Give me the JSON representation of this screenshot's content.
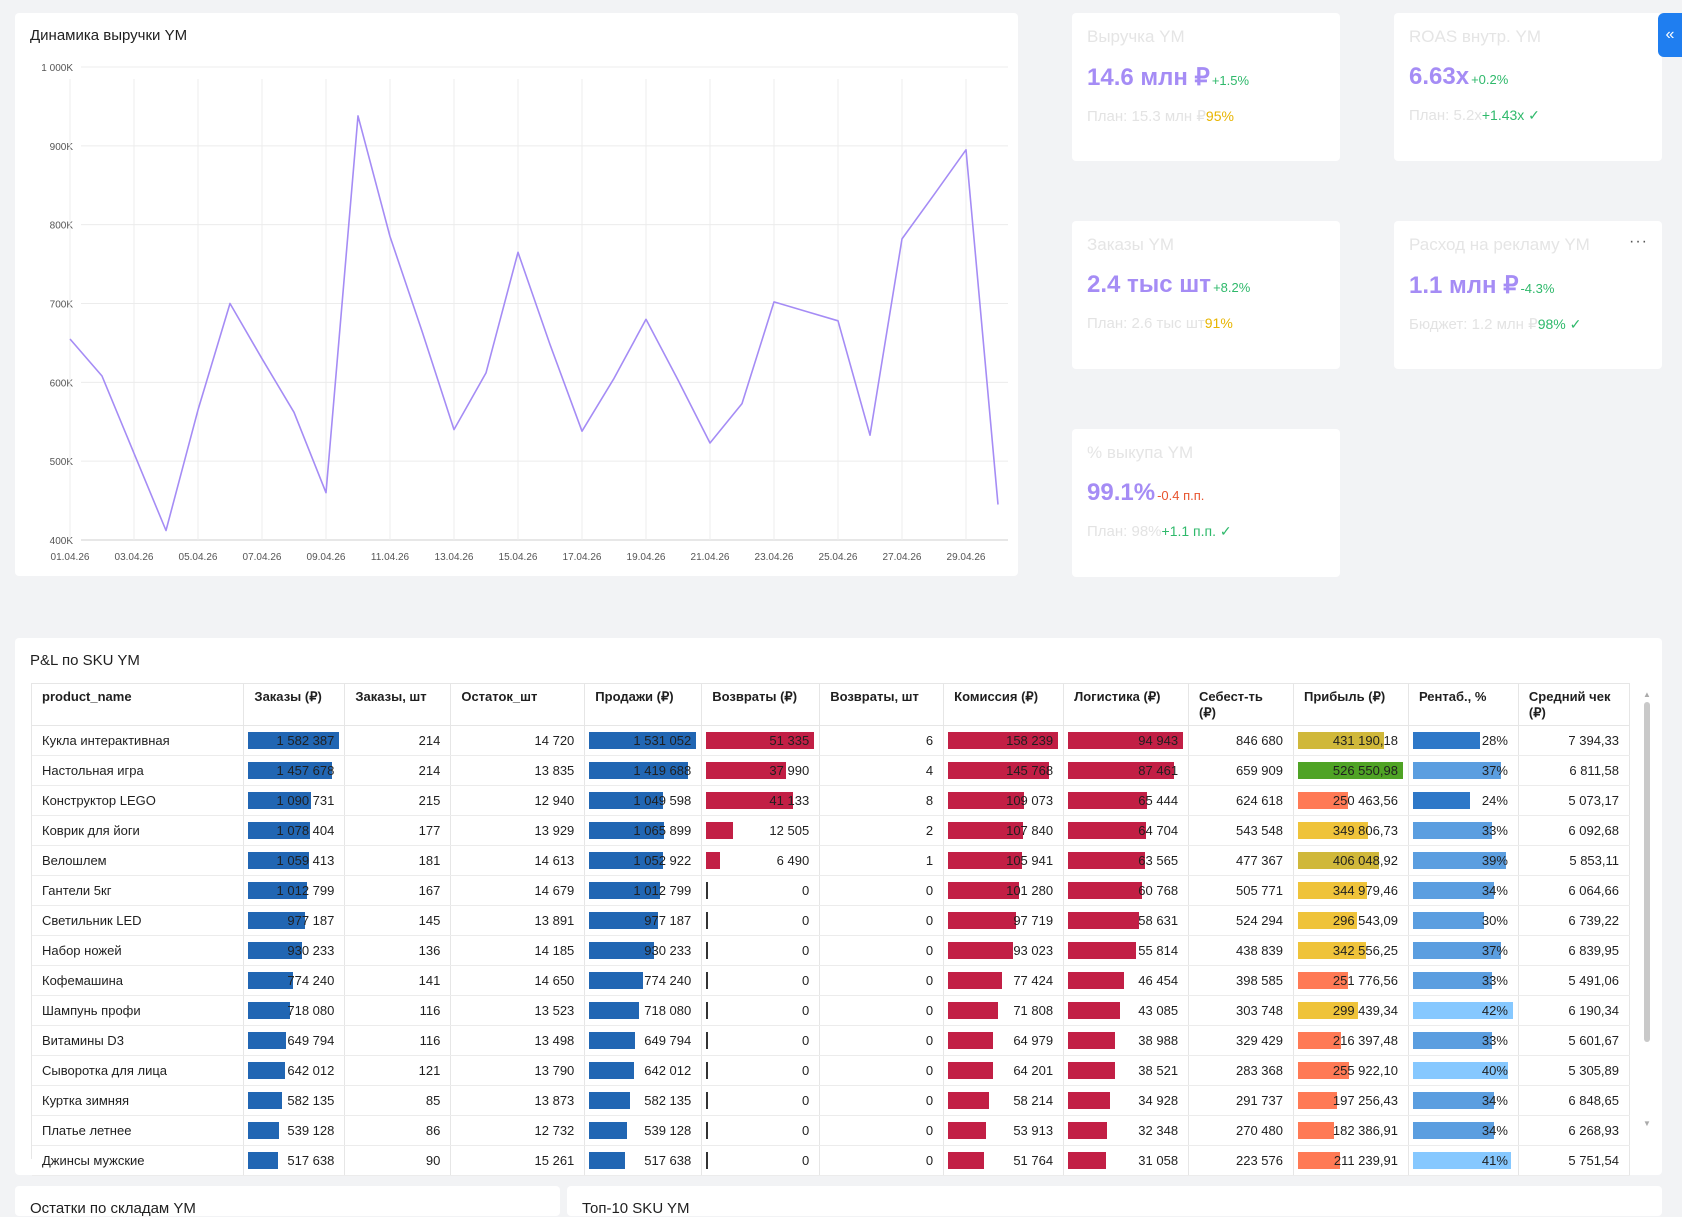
{
  "revenue_chart": {
    "title": "Динамика выручки YM",
    "chart_data": {
      "type": "line",
      "title": "Динамика выручки YM",
      "xlabel": "",
      "ylabel": "",
      "ylim": [
        400000,
        1000000
      ],
      "ytick_labels": [
        "1 000K",
        "900K",
        "800K",
        "700K",
        "600K",
        "500K",
        "400K"
      ],
      "xtick_labels": [
        "01.04.26",
        "03.04.26",
        "05.04.26",
        "07.04.26",
        "09.04.26",
        "11.04.26",
        "13.04.26",
        "15.04.26",
        "17.04.26",
        "19.04.26",
        "21.04.26",
        "23.04.26",
        "25.04.26",
        "27.04.26",
        "29.04.26"
      ],
      "x": [
        "01.04.26",
        "02.04.26",
        "03.04.26",
        "04.04.26",
        "05.04.26",
        "06.04.26",
        "07.04.26",
        "08.04.26",
        "09.04.26",
        "10.04.26",
        "11.04.26",
        "12.04.26",
        "13.04.26",
        "14.04.26",
        "15.04.26",
        "16.04.26",
        "17.04.26",
        "18.04.26",
        "19.04.26",
        "20.04.26",
        "21.04.26",
        "22.04.26",
        "23.04.26",
        "24.04.26",
        "25.04.26",
        "26.04.26",
        "27.04.26",
        "28.04.26",
        "29.04.26",
        "30.04.26"
      ],
      "values": [
        655000,
        608000,
        510000,
        412000,
        565000,
        700000,
        630000,
        562000,
        460000,
        938000,
        785000,
        665000,
        540000,
        612000,
        765000,
        648000,
        538000,
        605000,
        680000,
        603000,
        523000,
        573000,
        702000,
        690000,
        678000,
        533000,
        782000,
        838000,
        895000,
        445000
      ],
      "grid": true,
      "color": "#a58cf5"
    }
  },
  "kpis": {
    "revenue": {
      "title": "Выручка YM",
      "value": "14.6 млн ₽",
      "delta": "+1.5%",
      "plan_text": "План: 15.3 млн ₽",
      "plan_pct": "95%"
    },
    "roas": {
      "title": "ROAS внутр. YM",
      "value": "6.63x",
      "delta": "+0.2%",
      "plan_text": "План: 5.2x",
      "plan_pct": "+1.43x ✓"
    },
    "orders": {
      "title": "Заказы YM",
      "value": "2.4 тыс шт",
      "delta": "+8.2%",
      "plan_text": "План: 2.6 тыс шт",
      "plan_pct": "91%"
    },
    "ad_spend": {
      "title": "Расход на рекламу YM",
      "value": "1.1 млн ₽",
      "delta": "-4.3%",
      "plan_text": "Бюджет: 1.2 млн ₽",
      "plan_pct": "98% ✓",
      "menu": "···"
    },
    "buyout": {
      "title": "% выкупа YM",
      "value": "99.1%",
      "delta": "-0.4 п.п.",
      "plan_text": "План: 98%",
      "plan_pct": "+1.1 п.п. ✓"
    }
  },
  "collapse_button": "«",
  "pl_table": {
    "title": "P&L по SKU YM",
    "columns": [
      "product_name",
      "Заказы (₽)",
      "Заказы, шт",
      "Остаток_шт",
      "Продажи (₽)",
      "Возвраты (₽)",
      "Возвраты, шт",
      "Комиссия (₽)",
      "Логистика (₽)",
      "Себест-ть (₽)",
      "Прибыль (₽)",
      "Рентаб., %",
      "Средний чек (₽)"
    ],
    "rows": [
      {
        "name": "Кукла интерактивная",
        "orders_rub": "1 582 387",
        "orders_qty": "214",
        "stock": "14 720",
        "sales": "1 531 052",
        "returns_rub": "51 335",
        "returns_qty": "6",
        "commission": "158 239",
        "logistics": "94 943",
        "cost": "846 680",
        "profit": "431 190,18",
        "margin": "28%",
        "avg_check": "7 394,33"
      },
      {
        "name": "Настольная игра",
        "orders_rub": "1 457 678",
        "orders_qty": "214",
        "stock": "13 835",
        "sales": "1 419 688",
        "returns_rub": "37 990",
        "returns_qty": "4",
        "commission": "145 768",
        "logistics": "87 461",
        "cost": "659 909",
        "profit": "526 550,98",
        "margin": "37%",
        "avg_check": "6 811,58"
      },
      {
        "name": "Конструктор LEGO",
        "orders_rub": "1 090 731",
        "orders_qty": "215",
        "stock": "12 940",
        "sales": "1 049 598",
        "returns_rub": "41 133",
        "returns_qty": "8",
        "commission": "109 073",
        "logistics": "65 444",
        "cost": "624 618",
        "profit": "250 463,56",
        "margin": "24%",
        "avg_check": "5 073,17"
      },
      {
        "name": "Коврик для йоги",
        "orders_rub": "1 078 404",
        "orders_qty": "177",
        "stock": "13 929",
        "sales": "1 065 899",
        "returns_rub": "12 505",
        "returns_qty": "2",
        "commission": "107 840",
        "logistics": "64 704",
        "cost": "543 548",
        "profit": "349 806,73",
        "margin": "33%",
        "avg_check": "6 092,68"
      },
      {
        "name": "Велошлем",
        "orders_rub": "1 059 413",
        "orders_qty": "181",
        "stock": "14 613",
        "sales": "1 052 922",
        "returns_rub": "6 490",
        "returns_qty": "1",
        "commission": "105 941",
        "logistics": "63 565",
        "cost": "477 367",
        "profit": "406 048,92",
        "margin": "39%",
        "avg_check": "5 853,11"
      },
      {
        "name": "Гантели 5кг",
        "orders_rub": "1 012 799",
        "orders_qty": "167",
        "stock": "14 679",
        "sales": "1 012 799",
        "returns_rub": "0",
        "returns_qty": "0",
        "commission": "101 280",
        "logistics": "60 768",
        "cost": "505 771",
        "profit": "344 979,46",
        "margin": "34%",
        "avg_check": "6 064,66"
      },
      {
        "name": "Светильник LED",
        "orders_rub": "977 187",
        "orders_qty": "145",
        "stock": "13 891",
        "sales": "977 187",
        "returns_rub": "0",
        "returns_qty": "0",
        "commission": "97 719",
        "logistics": "58 631",
        "cost": "524 294",
        "profit": "296 543,09",
        "margin": "30%",
        "avg_check": "6 739,22"
      },
      {
        "name": "Набор ножей",
        "orders_rub": "930 233",
        "orders_qty": "136",
        "stock": "14 185",
        "sales": "930 233",
        "returns_rub": "0",
        "returns_qty": "0",
        "commission": "93 023",
        "logistics": "55 814",
        "cost": "438 839",
        "profit": "342 556,25",
        "margin": "37%",
        "avg_check": "6 839,95"
      },
      {
        "name": "Кофемашина",
        "orders_rub": "774 240",
        "orders_qty": "141",
        "stock": "14 650",
        "sales": "774 240",
        "returns_rub": "0",
        "returns_qty": "0",
        "commission": "77 424",
        "logistics": "46 454",
        "cost": "398 585",
        "profit": "251 776,56",
        "margin": "33%",
        "avg_check": "5 491,06"
      },
      {
        "name": "Шампунь профи",
        "orders_rub": "718 080",
        "orders_qty": "116",
        "stock": "13 523",
        "sales": "718 080",
        "returns_rub": "0",
        "returns_qty": "0",
        "commission": "71 808",
        "logistics": "43 085",
        "cost": "303 748",
        "profit": "299 439,34",
        "margin": "42%",
        "avg_check": "6 190,34"
      },
      {
        "name": "Витамины D3",
        "orders_rub": "649 794",
        "orders_qty": "116",
        "stock": "13 498",
        "sales": "649 794",
        "returns_rub": "0",
        "returns_qty": "0",
        "commission": "64 979",
        "logistics": "38 988",
        "cost": "329 429",
        "profit": "216 397,48",
        "margin": "33%",
        "avg_check": "5 601,67"
      },
      {
        "name": "Сыворотка для лица",
        "orders_rub": "642 012",
        "orders_qty": "121",
        "stock": "13 790",
        "sales": "642 012",
        "returns_rub": "0",
        "returns_qty": "0",
        "commission": "64 201",
        "logistics": "38 521",
        "cost": "283 368",
        "profit": "255 922,10",
        "margin": "40%",
        "avg_check": "5 305,89"
      },
      {
        "name": "Куртка зимняя",
        "orders_rub": "582 135",
        "orders_qty": "85",
        "stock": "13 873",
        "sales": "582 135",
        "returns_rub": "0",
        "returns_qty": "0",
        "commission": "58 214",
        "logistics": "34 928",
        "cost": "291 737",
        "profit": "197 256,43",
        "margin": "34%",
        "avg_check": "6 848,65"
      },
      {
        "name": "Платье летнее",
        "orders_rub": "539 128",
        "orders_qty": "86",
        "stock": "12 732",
        "sales": "539 128",
        "returns_rub": "0",
        "returns_qty": "0",
        "commission": "53 913",
        "logistics": "32 348",
        "cost": "270 480",
        "profit": "182 386,91",
        "margin": "34%",
        "avg_check": "6 268,93"
      },
      {
        "name": "Джинсы мужские",
        "orders_rub": "517 638",
        "orders_qty": "90",
        "stock": "15 261",
        "sales": "517 638",
        "returns_rub": "0",
        "returns_qty": "0",
        "commission": "51 764",
        "logistics": "31 058",
        "cost": "223 576",
        "profit": "211 239,91",
        "margin": "41%",
        "avg_check": "5 751,54"
      }
    ],
    "colors": {
      "orders_bar": "#2166b3",
      "returns_bar": "#c21f45",
      "commission_bar": "#c21f45",
      "logistics_bar": "#c21f45",
      "profit_low": "#ff7a55",
      "profit_mid": "#efc33a",
      "profit_olive": "#d0b83a",
      "profit_high": "#4fa325",
      "margin_low": "#2e78c8",
      "margin_mid": "#5b9ee0",
      "margin_high": "#86c8ff"
    }
  },
  "bottom_cards": {
    "left_title": "Остатки по складам YM",
    "right_title": "Топ-10 SKU YM"
  }
}
